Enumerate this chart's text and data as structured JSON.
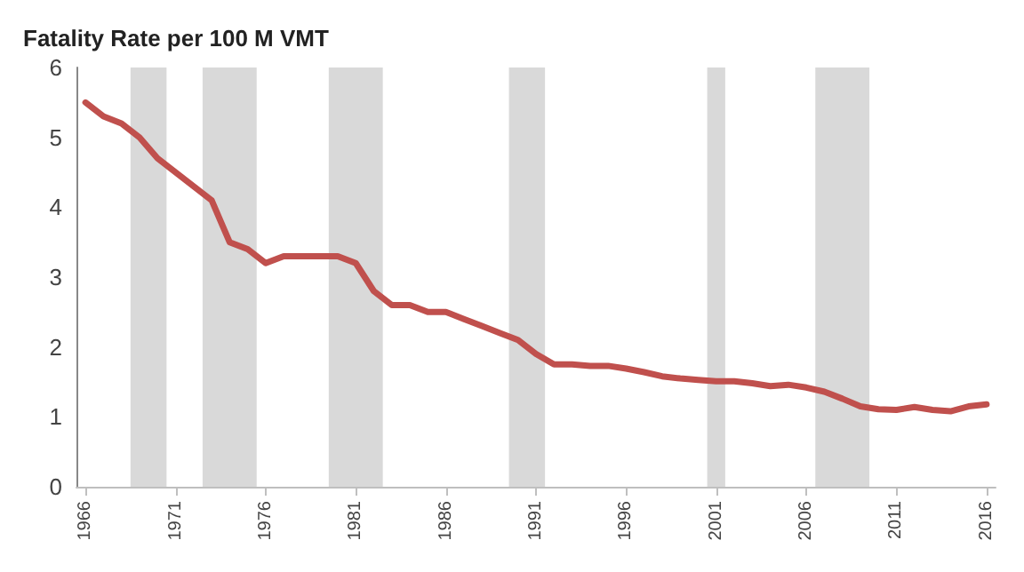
{
  "chart_data": {
    "type": "line",
    "title": "Fatality Rate per 100 M VMT",
    "x": [
      1966,
      1967,
      1968,
      1969,
      1970,
      1971,
      1972,
      1973,
      1974,
      1975,
      1976,
      1977,
      1978,
      1979,
      1980,
      1981,
      1982,
      1983,
      1984,
      1985,
      1986,
      1987,
      1988,
      1989,
      1990,
      1991,
      1992,
      1993,
      1994,
      1995,
      1996,
      1997,
      1998,
      1999,
      2000,
      2001,
      2002,
      2003,
      2004,
      2005,
      2006,
      2007,
      2008,
      2009,
      2010,
      2011,
      2012,
      2013,
      2014,
      2015,
      2016
    ],
    "series": [
      {
        "color": "#c0504d",
        "values": [
          5.5,
          5.3,
          5.2,
          5.0,
          4.7,
          4.5,
          4.3,
          4.1,
          3.5,
          3.4,
          3.2,
          3.3,
          3.3,
          3.3,
          3.3,
          3.2,
          2.8,
          2.6,
          2.6,
          2.5,
          2.5,
          2.4,
          2.3,
          2.2,
          2.1,
          1.9,
          1.75,
          1.75,
          1.73,
          1.73,
          1.69,
          1.64,
          1.58,
          1.55,
          1.53,
          1.51,
          1.51,
          1.48,
          1.44,
          1.46,
          1.42,
          1.36,
          1.26,
          1.15,
          1.11,
          1.1,
          1.14,
          1.1,
          1.08,
          1.15,
          1.18
        ]
      }
    ],
    "xlim": [
      1965.5,
      2016.5
    ],
    "xticks": [
      1966,
      1971,
      1976,
      1981,
      1986,
      1991,
      1996,
      2001,
      2006,
      2011,
      2016
    ],
    "ylim": [
      0,
      6
    ],
    "yticks": [
      0,
      1,
      2,
      3,
      4,
      5,
      6
    ],
    "bands": [
      {
        "axis": "x",
        "from": 1968.5,
        "to": 1970.5,
        "color": "#d9d9d9"
      },
      {
        "axis": "x",
        "from": 1972.5,
        "to": 1975.5,
        "color": "#d9d9d9"
      },
      {
        "axis": "x",
        "from": 1979.5,
        "to": 1982.5,
        "color": "#d9d9d9"
      },
      {
        "axis": "x",
        "from": 1989.5,
        "to": 1991.5,
        "color": "#d9d9d9"
      },
      {
        "axis": "x",
        "from": 2000.5,
        "to": 2001.5,
        "color": "#d9d9d9"
      },
      {
        "axis": "x",
        "from": 2006.5,
        "to": 2009.5,
        "color": "#d9d9d9"
      }
    ],
    "grid": false,
    "marker": "none",
    "line_style": "solid"
  }
}
